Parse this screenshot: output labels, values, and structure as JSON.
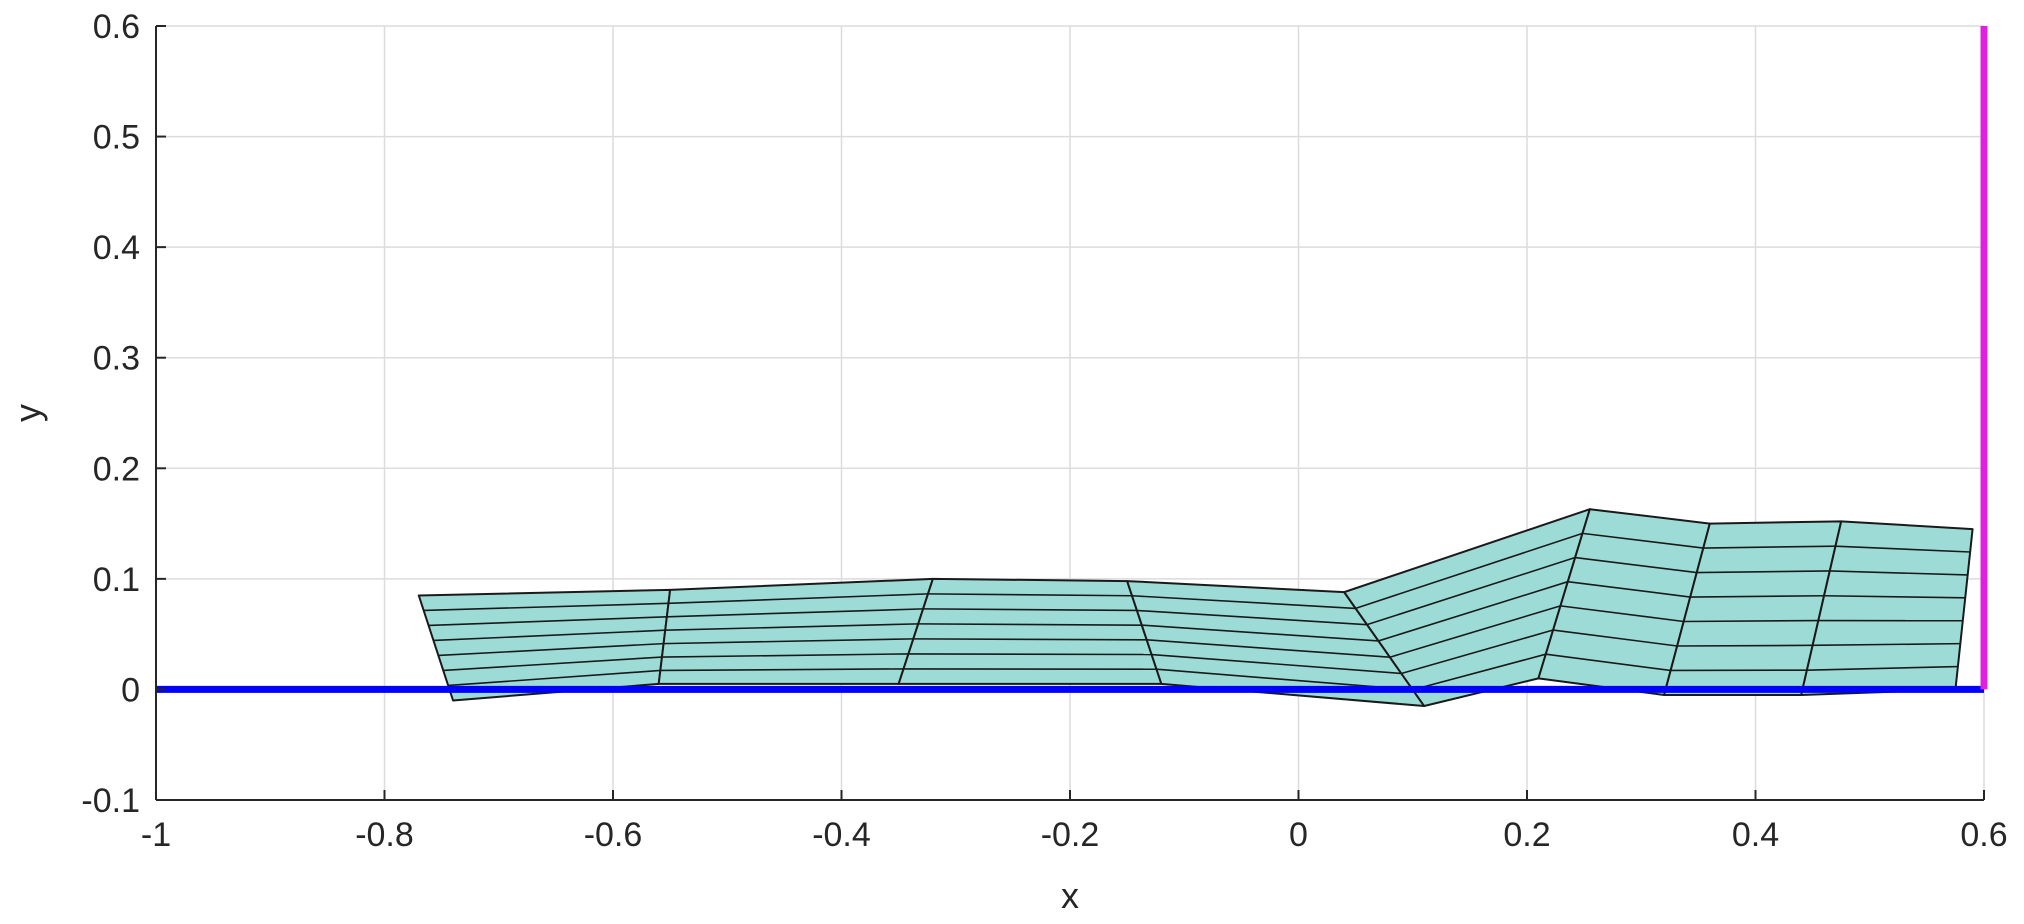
{
  "chart_data": {
    "type": "mesh",
    "xlabel": "x",
    "ylabel": "y",
    "xlim": [
      -1,
      0.6
    ],
    "ylim": [
      -0.1,
      0.6
    ],
    "x_ticks": [
      -1,
      -0.8,
      -0.6,
      -0.4,
      -0.2,
      0,
      0.2,
      0.4,
      0.6
    ],
    "x_tick_labels": [
      "-1",
      "-0.8",
      "-0.6",
      "-0.4",
      "-0.2",
      "0",
      "0.2",
      "0.4",
      "0.6"
    ],
    "y_ticks": [
      -0.1,
      0,
      0.1,
      0.2,
      0.3,
      0.4,
      0.5,
      0.6
    ],
    "y_tick_labels": [
      "-0.1",
      "0",
      "0.1",
      "0.2",
      "0.3",
      "0.4",
      "0.5",
      "0.6"
    ],
    "grid": true,
    "mesh": {
      "face_color": "#9ddcd6",
      "edge_color": "#1a1a1a",
      "sections": [
        {
          "top": [
            -0.77,
            0.085
          ],
          "bottom": [
            -0.74,
            -0.01
          ],
          "right_top": [
            -0.55,
            0.09
          ],
          "right_bottom": [
            -0.56,
            0.005
          ]
        },
        {
          "top": [
            -0.55,
            0.09
          ],
          "bottom": [
            -0.56,
            0.005
          ],
          "right_top": [
            -0.32,
            0.1
          ],
          "right_bottom": [
            -0.35,
            0.005
          ]
        },
        {
          "top": [
            -0.32,
            0.1
          ],
          "bottom": [
            -0.35,
            0.005
          ],
          "right_top": [
            -0.15,
            0.098
          ],
          "right_bottom": [
            -0.12,
            0.005
          ]
        },
        {
          "top": [
            -0.15,
            0.098
          ],
          "bottom": [
            -0.12,
            0.005
          ],
          "right_top": [
            0.04,
            0.088
          ],
          "right_bottom": [
            0.11,
            -0.015
          ]
        },
        {
          "top": [
            0.04,
            0.088
          ],
          "bottom": [
            0.11,
            -0.015
          ],
          "right_top": [
            0.255,
            0.163
          ],
          "right_bottom": [
            0.21,
            0.01
          ]
        },
        {
          "top": [
            0.255,
            0.163
          ],
          "bottom": [
            0.21,
            0.01
          ],
          "right_top": [
            0.36,
            0.15
          ],
          "right_bottom": [
            0.32,
            -0.005
          ]
        },
        {
          "top": [
            0.36,
            0.15
          ],
          "bottom": [
            0.32,
            -0.005
          ],
          "right_top": [
            0.475,
            0.152
          ],
          "right_bottom": [
            0.44,
            -0.005
          ]
        },
        {
          "top": [
            0.475,
            0.152
          ],
          "bottom": [
            0.44,
            -0.005
          ],
          "right_top": [
            0.59,
            0.145
          ],
          "right_bottom": [
            0.575,
            0.0
          ]
        }
      ],
      "layers": 7
    },
    "lines": [
      {
        "name": "",
        "color": "#0000ff",
        "points": [
          [
            -1,
            0
          ],
          [
            0.6,
            0
          ]
        ]
      },
      {
        "name": "",
        "color": "#e020e0",
        "points": [
          [
            0.6,
            0
          ],
          [
            0.6,
            0.6
          ]
        ]
      }
    ]
  }
}
